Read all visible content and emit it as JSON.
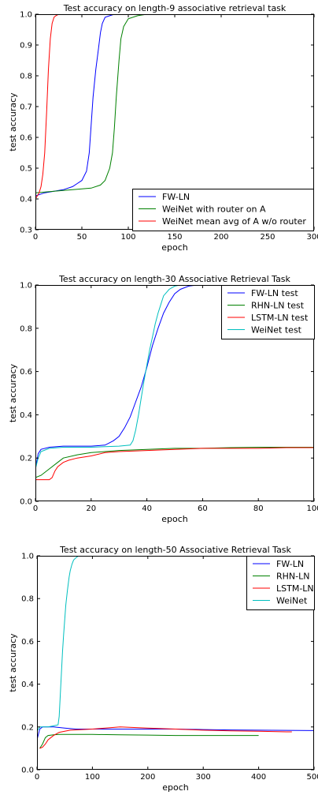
{
  "chart_data": [
    {
      "type": "line",
      "title": "Test accuracy on length-9 associative retrieval task",
      "xlabel": "epoch",
      "ylabel": "test accuracy",
      "xlim": [
        0,
        300
      ],
      "ylim": [
        0.3,
        1.0
      ],
      "xticks": [
        0,
        50,
        100,
        150,
        200,
        250,
        300
      ],
      "yticks": [
        0.3,
        0.4,
        0.5,
        0.6,
        0.7,
        0.8,
        0.9,
        1.0
      ],
      "xtick_labels": [
        "0",
        "50",
        "100",
        "150",
        "200",
        "250",
        "300"
      ],
      "ytick_labels": [
        "0.3",
        "0.4",
        "0.5",
        "0.6",
        "0.7",
        "0.8",
        "0.9",
        "1.0"
      ],
      "legend_position": "bottom-right",
      "grid": false,
      "series": [
        {
          "name": "FW-LN",
          "color": "#0000ff",
          "x": [
            0,
            10,
            20,
            30,
            40,
            45,
            50,
            55,
            58,
            60,
            62,
            65,
            68,
            70,
            72,
            75,
            80,
            85,
            90,
            95,
            100,
            110
          ],
          "y": [
            0.41,
            0.42,
            0.425,
            0.43,
            0.44,
            0.45,
            0.46,
            0.49,
            0.55,
            0.64,
            0.73,
            0.82,
            0.89,
            0.94,
            0.97,
            0.99,
            0.995,
            1.0,
            1.0,
            1.0,
            1.0,
            1.0
          ]
        },
        {
          "name": "WeiNet with router on A",
          "color": "#008000",
          "x": [
            0,
            20,
            40,
            60,
            70,
            75,
            80,
            83,
            85,
            87,
            90,
            92,
            95,
            100,
            110,
            120,
            150
          ],
          "y": [
            0.42,
            0.425,
            0.43,
            0.435,
            0.445,
            0.46,
            0.5,
            0.55,
            0.63,
            0.73,
            0.85,
            0.92,
            0.96,
            0.985,
            0.995,
            1.0,
            1.0
          ]
        },
        {
          "name": "WeiNet mean avg of A w/o router",
          "color": "#ff0000",
          "x": [
            0,
            2,
            4,
            6,
            8,
            10,
            12,
            14,
            16,
            18,
            20,
            22,
            25,
            30,
            40,
            60,
            65
          ],
          "y": [
            0.4,
            0.41,
            0.42,
            0.44,
            0.48,
            0.55,
            0.68,
            0.82,
            0.92,
            0.97,
            0.99,
            0.995,
            1.0,
            1.0,
            1.0,
            1.0,
            1.0
          ]
        }
      ]
    },
    {
      "type": "line",
      "title": "Test accuracy on length-30 Associative Retrieval Task",
      "xlabel": "epoch",
      "ylabel": "test accuracy",
      "xlim": [
        0,
        100
      ],
      "ylim": [
        0.0,
        1.0
      ],
      "xticks": [
        0,
        20,
        40,
        60,
        80,
        100
      ],
      "yticks": [
        0.0,
        0.2,
        0.4,
        0.6,
        0.8,
        1.0
      ],
      "xtick_labels": [
        "0",
        "20",
        "40",
        "60",
        "80",
        "100"
      ],
      "ytick_labels": [
        "0.0",
        "0.2",
        "0.4",
        "0.6",
        "0.8",
        "1.0"
      ],
      "legend_position": "top-right",
      "grid": false,
      "series": [
        {
          "name": "FW-LN test",
          "color": "#0000ff",
          "x": [
            0,
            1,
            2,
            5,
            10,
            15,
            20,
            25,
            28,
            30,
            32,
            34,
            36,
            38,
            40,
            42,
            44,
            46,
            48,
            50,
            52,
            55,
            58,
            60
          ],
          "y": [
            0.15,
            0.22,
            0.24,
            0.25,
            0.255,
            0.255,
            0.255,
            0.26,
            0.28,
            0.3,
            0.34,
            0.39,
            0.46,
            0.53,
            0.62,
            0.72,
            0.8,
            0.87,
            0.92,
            0.96,
            0.98,
            0.995,
            1.0,
            1.0
          ]
        },
        {
          "name": "RHN-LN test",
          "color": "#008000",
          "x": [
            0,
            2,
            5,
            8,
            10,
            15,
            20,
            25,
            30,
            40,
            50,
            60,
            70,
            80,
            90,
            100
          ],
          "y": [
            0.11,
            0.12,
            0.15,
            0.18,
            0.2,
            0.215,
            0.225,
            0.23,
            0.235,
            0.24,
            0.245,
            0.245,
            0.248,
            0.25,
            0.25,
            0.25
          ]
        },
        {
          "name": "LSTM-LN test",
          "color": "#ff0000",
          "x": [
            0,
            2,
            5,
            6,
            7,
            8,
            10,
            12,
            15,
            20,
            25,
            30,
            40,
            50,
            60,
            70,
            80,
            90,
            100
          ],
          "y": [
            0.1,
            0.1,
            0.1,
            0.11,
            0.14,
            0.16,
            0.18,
            0.19,
            0.2,
            0.21,
            0.225,
            0.23,
            0.235,
            0.24,
            0.245,
            0.245,
            0.245,
            0.248,
            0.248
          ]
        },
        {
          "name": "WeiNet test",
          "color": "#00bfbf",
          "x": [
            0,
            1,
            2,
            5,
            10,
            20,
            30,
            34,
            35,
            36,
            37,
            38,
            39,
            40,
            41,
            42,
            43,
            44,
            45,
            46,
            48,
            50,
            52
          ],
          "y": [
            0.15,
            0.2,
            0.23,
            0.245,
            0.25,
            0.25,
            0.255,
            0.26,
            0.28,
            0.33,
            0.4,
            0.48,
            0.56,
            0.63,
            0.7,
            0.76,
            0.82,
            0.87,
            0.91,
            0.95,
            0.98,
            0.995,
            1.0
          ]
        }
      ]
    },
    {
      "type": "line",
      "title": "Test accuracy on length-50 Associative Retrieval Task",
      "xlabel": "epoch",
      "ylabel": "test accuracy",
      "xlim": [
        0,
        500
      ],
      "ylim": [
        0.0,
        1.0
      ],
      "xticks": [
        0,
        100,
        200,
        300,
        400,
        500
      ],
      "yticks": [
        0.0,
        0.2,
        0.4,
        0.6,
        0.8,
        1.0
      ],
      "xtick_labels": [
        "0",
        "100",
        "200",
        "300",
        "400",
        "500"
      ],
      "ytick_labels": [
        "0.0",
        "0.2",
        "0.4",
        "0.6",
        "0.8",
        "1.0"
      ],
      "legend_position": "top-right",
      "grid": false,
      "series": [
        {
          "name": "FW-LN",
          "color": "#0000ff",
          "x": [
            0,
            5,
            10,
            30,
            50,
            70,
            100,
            150,
            200,
            250,
            300,
            350,
            400,
            450,
            500
          ],
          "y": [
            0.14,
            0.19,
            0.2,
            0.2,
            0.195,
            0.19,
            0.19,
            0.19,
            0.19,
            0.19,
            0.188,
            0.186,
            0.185,
            0.184,
            0.183
          ]
        },
        {
          "name": "RHN-LN",
          "color": "#008000",
          "x": [
            5,
            10,
            15,
            20,
            30,
            40,
            60,
            100,
            150,
            200,
            250,
            300,
            350,
            400
          ],
          "y": [
            0.1,
            0.12,
            0.15,
            0.16,
            0.163,
            0.165,
            0.165,
            0.165,
            0.163,
            0.162,
            0.16,
            0.16,
            0.16,
            0.16
          ]
        },
        {
          "name": "LSTM-LN",
          "color": "#ff0000",
          "x": [
            5,
            10,
            15,
            20,
            25,
            30,
            40,
            60,
            100,
            150,
            200,
            250,
            300,
            350,
            400,
            450,
            460
          ],
          "y": [
            0.1,
            0.105,
            0.12,
            0.14,
            0.15,
            0.16,
            0.175,
            0.185,
            0.19,
            0.2,
            0.195,
            0.19,
            0.185,
            0.182,
            0.18,
            0.177,
            0.177
          ]
        },
        {
          "name": "WeiNet",
          "color": "#00bfbf",
          "x": [
            0,
            5,
            10,
            20,
            30,
            38,
            40,
            42,
            44,
            46,
            48,
            50,
            52,
            55,
            58,
            60,
            63,
            66,
            70,
            75,
            80
          ],
          "y": [
            0.18,
            0.2,
            0.2,
            0.2,
            0.205,
            0.21,
            0.25,
            0.35,
            0.45,
            0.55,
            0.63,
            0.7,
            0.77,
            0.84,
            0.9,
            0.93,
            0.96,
            0.98,
            0.99,
            1.0,
            1.0
          ]
        }
      ]
    }
  ]
}
